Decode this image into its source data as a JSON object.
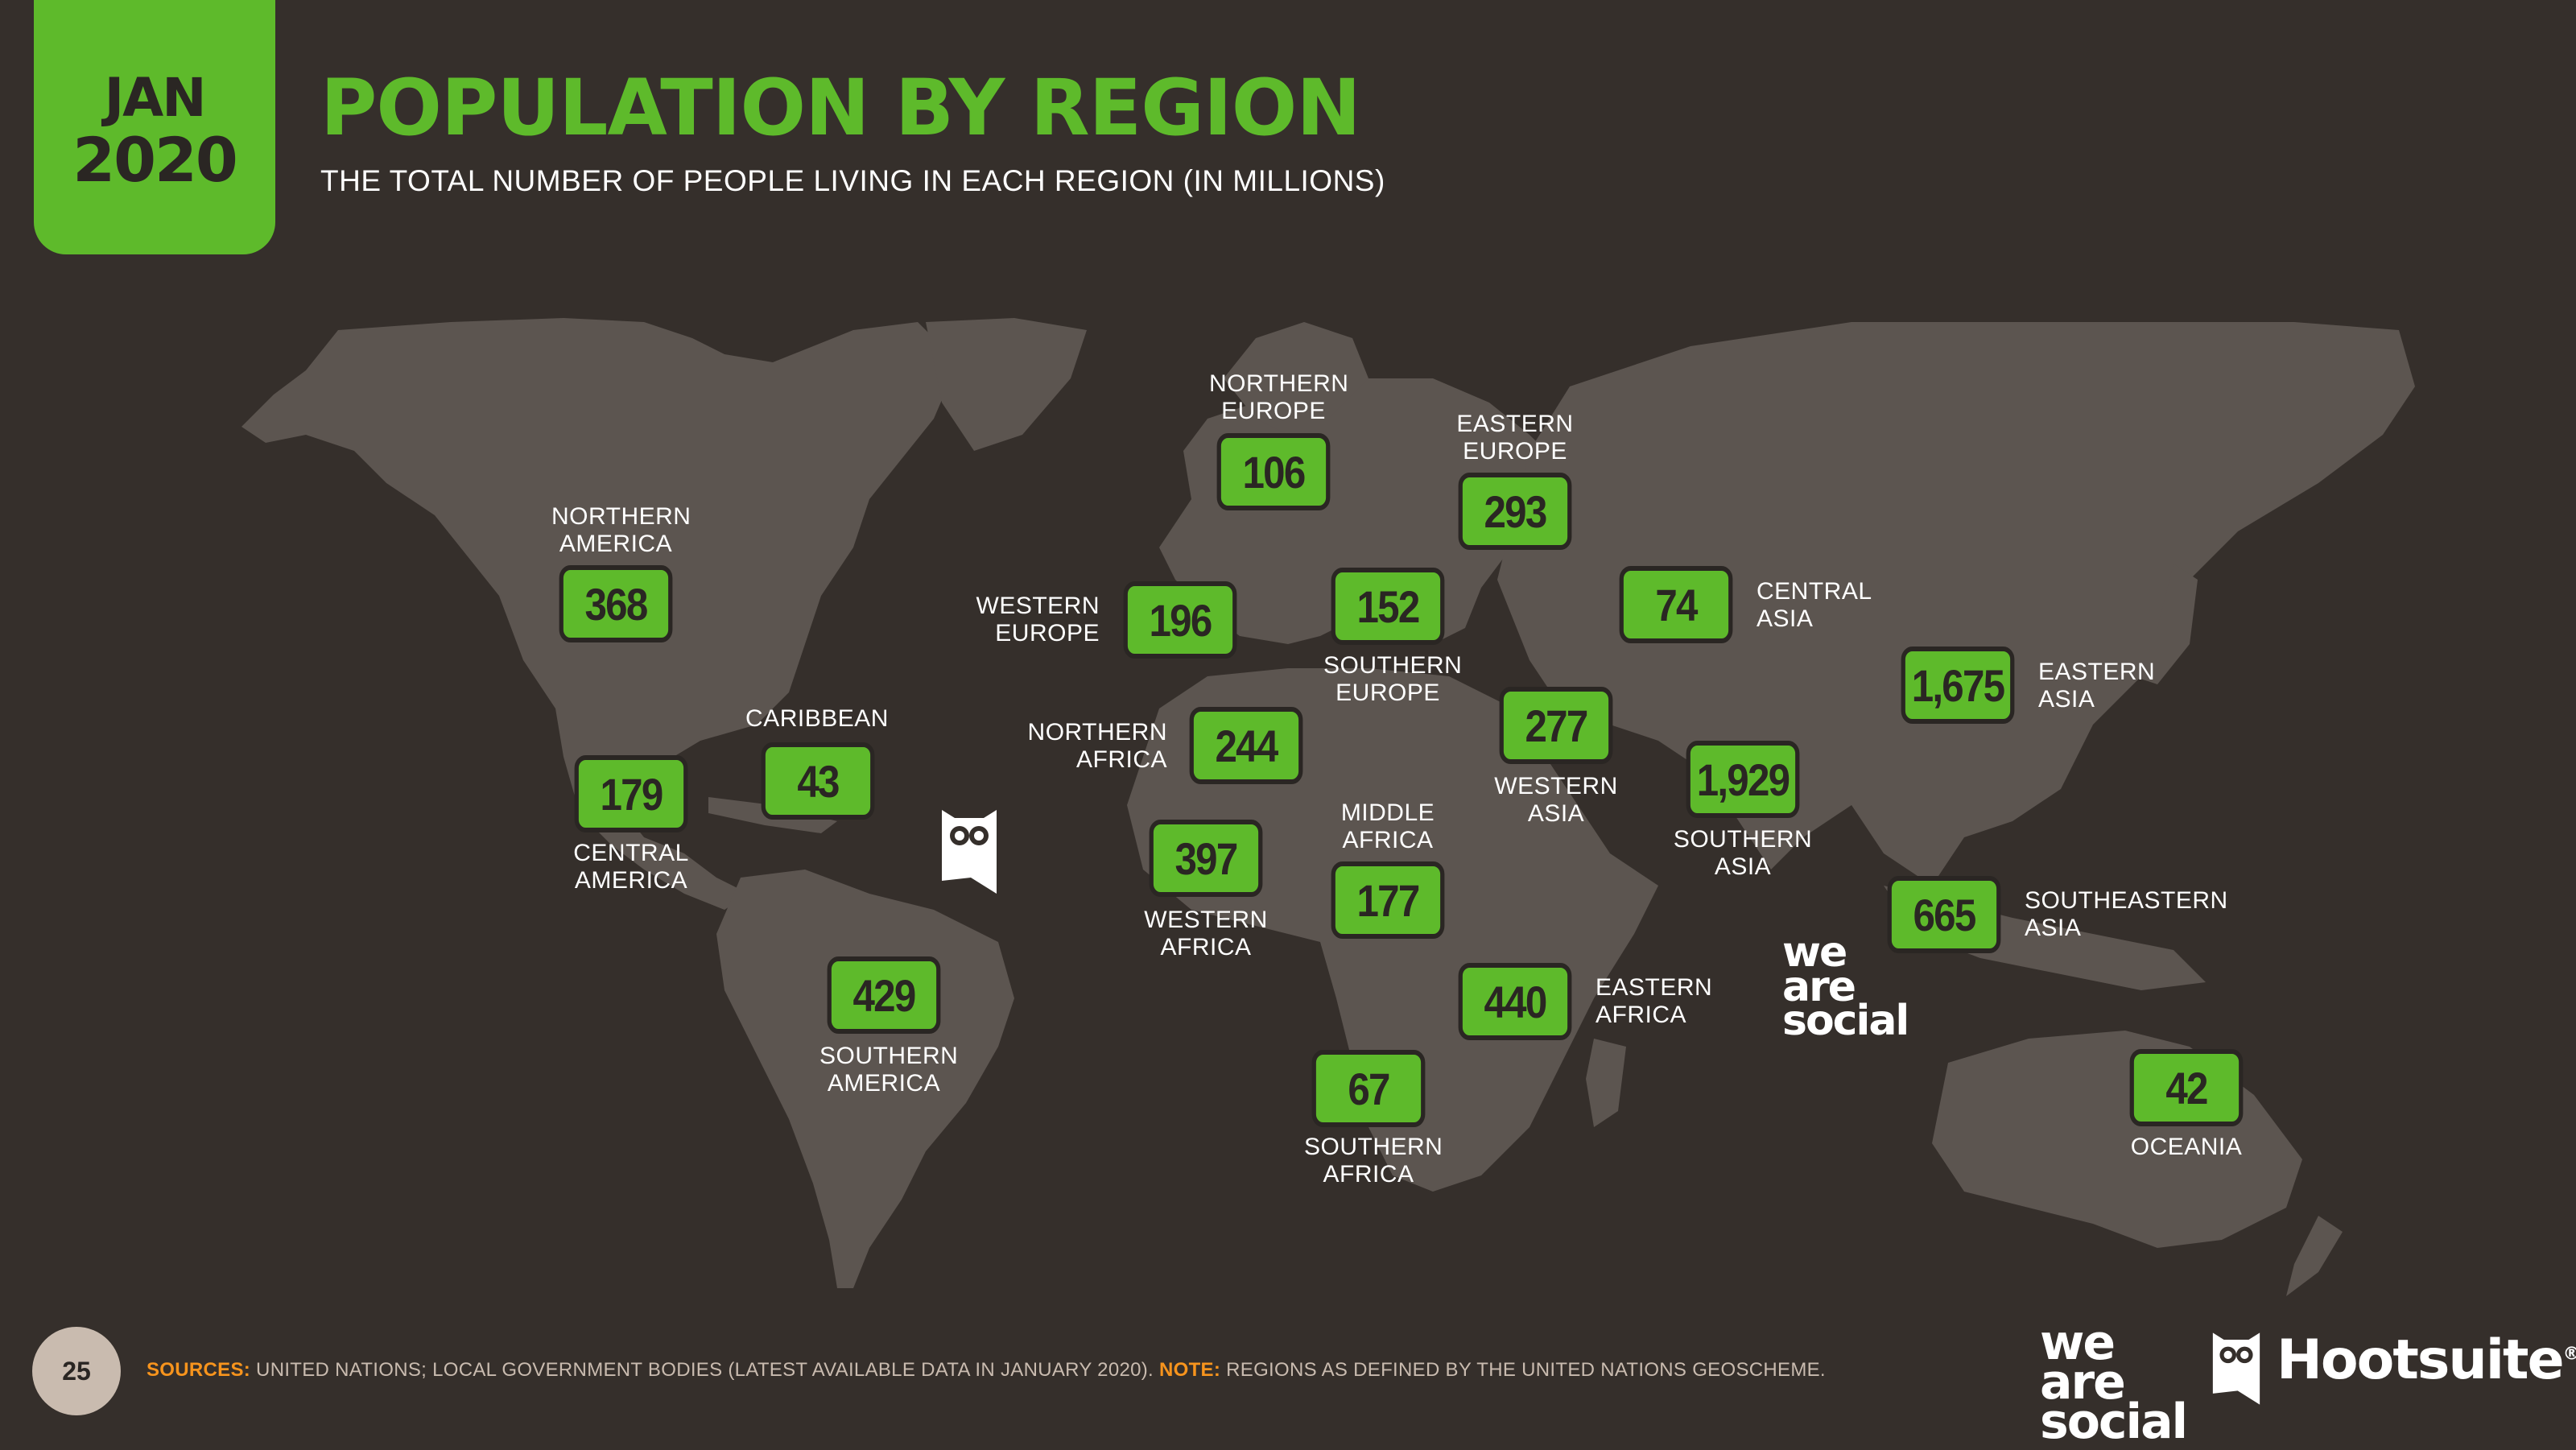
{
  "date": {
    "month": "JAN",
    "year": "2020"
  },
  "title": "POPULATION BY REGION",
  "subtitle": "THE TOTAL NUMBER OF PEOPLE LIVING IN EACH REGION (IN MILLIONS)",
  "regions": [
    {
      "id": "northern-america",
      "line1": "NORTHERN",
      "line2": "AMERICA",
      "value": "368"
    },
    {
      "id": "central-america",
      "line1": "CENTRAL",
      "line2": "AMERICA",
      "value": "179"
    },
    {
      "id": "caribbean",
      "line1": "CARIBBEAN",
      "line2": "",
      "value": "43"
    },
    {
      "id": "southern-america",
      "line1": "SOUTHERN",
      "line2": "AMERICA",
      "value": "429"
    },
    {
      "id": "northern-europe",
      "line1": "NORTHERN",
      "line2": "EUROPE",
      "value": "106"
    },
    {
      "id": "western-europe",
      "line1": "WESTERN",
      "line2": "EUROPE",
      "value": "196"
    },
    {
      "id": "southern-europe",
      "line1": "SOUTHERN",
      "line2": "EUROPE",
      "value": "152"
    },
    {
      "id": "eastern-europe",
      "line1": "EASTERN",
      "line2": "EUROPE",
      "value": "293"
    },
    {
      "id": "northern-africa",
      "line1": "NORTHERN",
      "line2": "AFRICA",
      "value": "244"
    },
    {
      "id": "western-africa",
      "line1": "WESTERN",
      "line2": "AFRICA",
      "value": "397"
    },
    {
      "id": "middle-africa",
      "line1": "MIDDLE",
      "line2": "AFRICA",
      "value": "177"
    },
    {
      "id": "eastern-africa",
      "line1": "EASTERN",
      "line2": "AFRICA",
      "value": "440"
    },
    {
      "id": "southern-africa",
      "line1": "SOUTHERN",
      "line2": "AFRICA",
      "value": "67"
    },
    {
      "id": "western-asia",
      "line1": "WESTERN",
      "line2": "ASIA",
      "value": "277"
    },
    {
      "id": "central-asia",
      "line1": "CENTRAL",
      "line2": "ASIA",
      "value": "74"
    },
    {
      "id": "southern-asia",
      "line1": "SOUTHERN",
      "line2": "ASIA",
      "value": "1,929"
    },
    {
      "id": "eastern-asia",
      "line1": "EASTERN",
      "line2": "ASIA",
      "value": "1,675"
    },
    {
      "id": "southeastern-asia",
      "line1": "SOUTHEASTERN",
      "line2": "ASIA",
      "value": "665"
    },
    {
      "id": "oceania",
      "line1": "OCEANIA",
      "line2": "",
      "value": "42"
    }
  ],
  "footer": {
    "page_number": "25",
    "sources_label": "SOURCES:",
    "sources_text": " UNITED NATIONS; LOCAL GOVERNMENT BODIES (LATEST AVAILABLE DATA IN JANUARY 2020). ",
    "note_label": "NOTE:",
    "note_text": " REGIONS AS DEFINED BY THE UNITED NATIONS GEOSCHEME."
  },
  "logos": {
    "was_line1": "we",
    "was_line2": "are",
    "was_line3": "social",
    "hootsuite": "Hootsuite",
    "trademark": "®"
  },
  "colors": {
    "background": "#352f2b",
    "land": "#5c5550",
    "accent_green": "#5eba2b",
    "value_text": "#2a2623",
    "label_text": "#ffffff",
    "sources_orange": "#f7941d",
    "footer_text": "#c9bbaf"
  }
}
